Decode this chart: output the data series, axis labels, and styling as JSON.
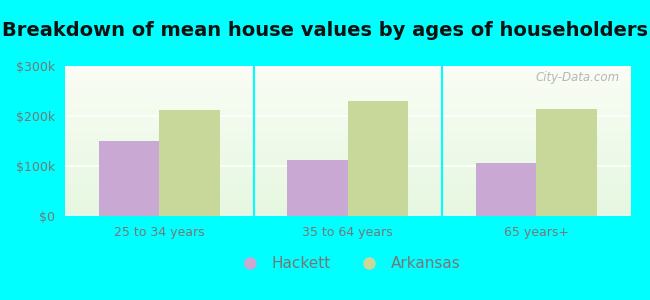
{
  "title": "Breakdown of mean house values by ages of householders",
  "categories": [
    "25 to 34 years",
    "35 to 64 years",
    "65 years+"
  ],
  "hackett_values": [
    150000,
    113000,
    107000
  ],
  "arkansas_values": [
    213000,
    230000,
    215000
  ],
  "hackett_color": "#c9a8d4",
  "arkansas_color": "#c8d89a",
  "ylim": [
    0,
    300000
  ],
  "yticks": [
    0,
    100000,
    200000,
    300000
  ],
  "ytick_labels": [
    "$0",
    "$100k",
    "$200k",
    "$300k"
  ],
  "bar_width": 0.32,
  "figure_bg": "#00ffff",
  "plot_bg": "#e8f8e8",
  "legend_hackett": "Hackett",
  "legend_arkansas": "Arkansas",
  "title_fontsize": 14,
  "tick_fontsize": 9,
  "legend_fontsize": 11,
  "watermark": "City-Data.com",
  "tick_color": "#777777",
  "title_color": "#111111",
  "separator_color": "#00cccc"
}
